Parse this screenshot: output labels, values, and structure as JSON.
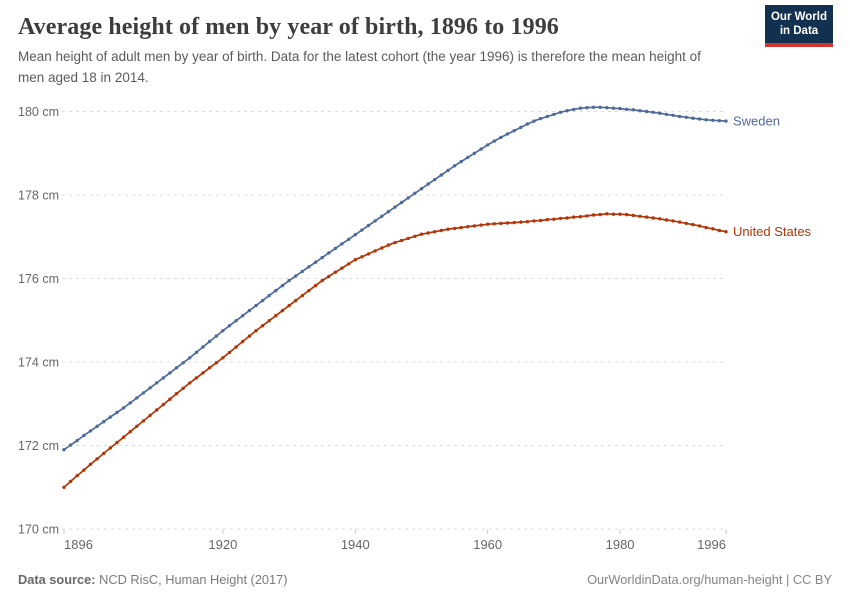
{
  "header": {
    "title": "Average height of men by year of birth, 1896 to 1996",
    "subtitle": "Mean height of adult men by year of birth. Data for the latest cohort (the year 1996) is therefore the mean height of men aged 18 in 2014.",
    "logo": {
      "line1": "Our World",
      "line2": "in Data"
    }
  },
  "footer": {
    "source_label": "Data source:",
    "source_text": " NCD RisC, Human Height (2017)",
    "credit": "OurWorldinData.org/human-height | CC BY"
  },
  "colors": {
    "sweden": "#4e6a9c",
    "united_states": "#b13507",
    "grid": "#dcdcdc",
    "tick_mark": "#c8c8c8",
    "tick_text": "#666666",
    "logo_bg": "#12304f",
    "logo_accent": "#d0342c"
  },
  "chart_data": {
    "type": "line",
    "title": "Average height of men by year of birth, 1896 to 1996",
    "xlabel": "",
    "ylabel": "",
    "unit": "cm",
    "xlim": [
      1896,
      1996
    ],
    "ylim": [
      170,
      180.6
    ],
    "grid": "dashed-horizontal",
    "legend": "end-of-line-labels",
    "x_ticks": [
      1896,
      1920,
      1940,
      1960,
      1980,
      1996
    ],
    "y_ticks": [
      {
        "value": 170,
        "label": "170 cm"
      },
      {
        "value": 172,
        "label": "172 cm"
      },
      {
        "value": 174,
        "label": "174 cm"
      },
      {
        "value": 176,
        "label": "176 cm"
      },
      {
        "value": 178,
        "label": "178 cm"
      },
      {
        "value": 180,
        "label": "180 cm"
      }
    ],
    "x": [
      1896,
      1897,
      1898,
      1899,
      1900,
      1901,
      1902,
      1903,
      1904,
      1905,
      1906,
      1907,
      1908,
      1909,
      1910,
      1911,
      1912,
      1913,
      1914,
      1915,
      1916,
      1917,
      1918,
      1919,
      1920,
      1921,
      1922,
      1923,
      1924,
      1925,
      1926,
      1927,
      1928,
      1929,
      1930,
      1931,
      1932,
      1933,
      1934,
      1935,
      1936,
      1937,
      1938,
      1939,
      1940,
      1941,
      1942,
      1943,
      1944,
      1945,
      1946,
      1947,
      1948,
      1949,
      1950,
      1951,
      1952,
      1953,
      1954,
      1955,
      1956,
      1957,
      1958,
      1959,
      1960,
      1961,
      1962,
      1963,
      1964,
      1965,
      1966,
      1967,
      1968,
      1969,
      1970,
      1971,
      1972,
      1973,
      1974,
      1975,
      1976,
      1977,
      1978,
      1979,
      1980,
      1981,
      1982,
      1983,
      1984,
      1985,
      1986,
      1987,
      1988,
      1989,
      1990,
      1991,
      1992,
      1993,
      1994,
      1995,
      1996
    ],
    "series": [
      {
        "name": "Sweden",
        "color": "#4e6a9c",
        "values": [
          171.9,
          172.01,
          172.12,
          172.24,
          172.35,
          172.46,
          172.57,
          172.68,
          172.79,
          172.9,
          173.02,
          173.14,
          173.26,
          173.38,
          173.5,
          173.62,
          173.74,
          173.86,
          173.98,
          174.1,
          174.23,
          174.36,
          174.49,
          174.62,
          174.75,
          174.87,
          174.99,
          175.11,
          175.23,
          175.35,
          175.47,
          175.59,
          175.71,
          175.83,
          175.95,
          176.06,
          176.17,
          176.28,
          176.39,
          176.5,
          176.61,
          176.72,
          176.83,
          176.94,
          177.05,
          177.16,
          177.27,
          177.38,
          177.49,
          177.6,
          177.71,
          177.82,
          177.93,
          178.04,
          178.15,
          178.26,
          178.37,
          178.48,
          178.59,
          178.7,
          178.8,
          178.9,
          179.0,
          179.1,
          179.2,
          179.29,
          179.38,
          179.46,
          179.54,
          179.62,
          179.7,
          179.77,
          179.83,
          179.88,
          179.93,
          179.98,
          180.02,
          180.05,
          180.08,
          180.09,
          180.1,
          180.1,
          180.09,
          180.08,
          180.07,
          180.05,
          180.04,
          180.02,
          180.0,
          179.98,
          179.96,
          179.93,
          179.91,
          179.88,
          179.86,
          179.84,
          179.82,
          179.8,
          179.79,
          179.78,
          179.77
        ]
      },
      {
        "name": "United States",
        "color": "#b13507",
        "values": [
          171.0,
          171.14,
          171.28,
          171.41,
          171.55,
          171.68,
          171.81,
          171.94,
          172.07,
          172.2,
          172.33,
          172.46,
          172.59,
          172.72,
          172.85,
          172.98,
          173.11,
          173.24,
          173.37,
          173.5,
          173.62,
          173.74,
          173.86,
          173.98,
          174.1,
          174.23,
          174.36,
          174.49,
          174.62,
          174.75,
          174.87,
          174.99,
          175.11,
          175.23,
          175.35,
          175.47,
          175.59,
          175.71,
          175.83,
          175.95,
          176.05,
          176.15,
          176.25,
          176.35,
          176.45,
          176.52,
          176.59,
          176.66,
          176.73,
          176.8,
          176.86,
          176.91,
          176.96,
          177.01,
          177.06,
          177.09,
          177.12,
          177.15,
          177.18,
          177.2,
          177.22,
          177.24,
          177.26,
          177.28,
          177.3,
          177.31,
          177.32,
          177.33,
          177.34,
          177.35,
          177.36,
          177.38,
          177.39,
          177.41,
          177.42,
          177.44,
          177.45,
          177.47,
          177.48,
          177.5,
          177.52,
          177.53,
          177.55,
          177.54,
          177.54,
          177.53,
          177.51,
          177.49,
          177.47,
          177.45,
          177.43,
          177.4,
          177.38,
          177.35,
          177.32,
          177.29,
          177.26,
          177.22,
          177.19,
          177.15,
          177.12
        ]
      }
    ]
  }
}
